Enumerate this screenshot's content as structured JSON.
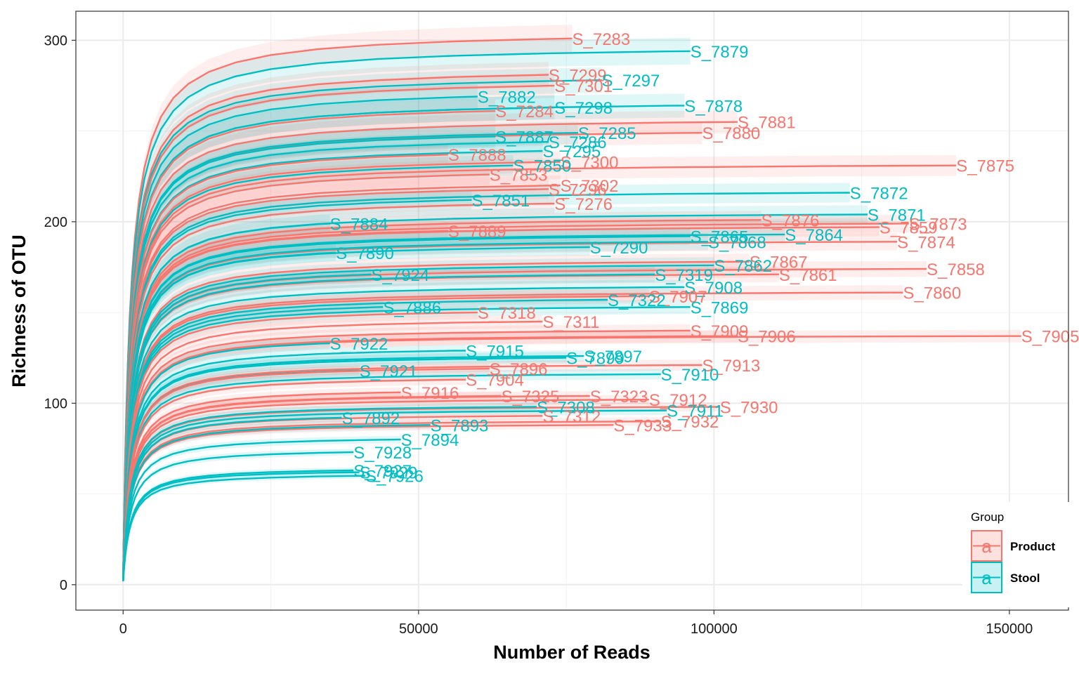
{
  "chart_data": {
    "type": "line",
    "title": "",
    "xlabel": "Number of Reads",
    "ylabel": "Richness of OTU",
    "xlim": [
      -8000,
      160000
    ],
    "ylim": [
      -14,
      316
    ],
    "x_ticks": [
      0,
      50000,
      100000,
      150000
    ],
    "x_tick_labels": [
      "0",
      "50000",
      "100000",
      "150000"
    ],
    "y_ticks": [
      0,
      100,
      200,
      300
    ],
    "y_tick_labels": [
      "0",
      "100",
      "200",
      "300"
    ],
    "grid": true,
    "legend": {
      "title": "Group",
      "placement": "bottom-right",
      "key_glyph": "a",
      "entries": [
        {
          "name": "Product",
          "color": "#F8766D"
        },
        {
          "name": "Stool",
          "color": "#00BFC4"
        }
      ]
    },
    "series": [
      {
        "label": "S_7283",
        "group": "Product",
        "max_reads": 76000,
        "richness": 301
      },
      {
        "label": "S_7879",
        "group": "Stool",
        "max_reads": 96000,
        "richness": 294
      },
      {
        "label": "S_7299",
        "group": "Product",
        "max_reads": 72000,
        "richness": 281
      },
      {
        "label": "S_7297",
        "group": "Stool",
        "max_reads": 81000,
        "richness": 278
      },
      {
        "label": "S_7301",
        "group": "Product",
        "max_reads": 73000,
        "richness": 275
      },
      {
        "label": "S_7882",
        "group": "Stool",
        "max_reads": 60000,
        "richness": 269
      },
      {
        "label": "S_7878",
        "group": "Stool",
        "max_reads": 95000,
        "richness": 264
      },
      {
        "label": "S_7298",
        "group": "Stool",
        "max_reads": 73000,
        "richness": 263
      },
      {
        "label": "S_7284",
        "group": "Product",
        "max_reads": 63000,
        "richness": 261
      },
      {
        "label": "S_7881",
        "group": "Product",
        "max_reads": 104000,
        "richness": 255
      },
      {
        "label": "S_7880",
        "group": "Product",
        "max_reads": 98000,
        "richness": 249
      },
      {
        "label": "S_7887",
        "group": "Stool",
        "max_reads": 63000,
        "richness": 247
      },
      {
        "label": "S_7285",
        "group": "Stool",
        "max_reads": 77000,
        "richness": 249
      },
      {
        "label": "S_7286",
        "group": "Stool",
        "max_reads": 72000,
        "richness": 244
      },
      {
        "label": "S_7295",
        "group": "Stool",
        "max_reads": 71000,
        "richness": 239
      },
      {
        "label": "S_7888",
        "group": "Product",
        "max_reads": 55000,
        "richness": 237
      },
      {
        "label": "S_7300",
        "group": "Product",
        "max_reads": 74000,
        "richness": 233
      },
      {
        "label": "S_7850",
        "group": "Stool",
        "max_reads": 66000,
        "richness": 231
      },
      {
        "label": "S_7875",
        "group": "Product",
        "max_reads": 141000,
        "richness": 231
      },
      {
        "label": "S_7853",
        "group": "Product",
        "max_reads": 62000,
        "richness": 226
      },
      {
        "label": "S_7302",
        "group": "Product",
        "max_reads": 74000,
        "richness": 220
      },
      {
        "label": "S_7296",
        "group": "Product",
        "max_reads": 72000,
        "richness": 218
      },
      {
        "label": "S_7872",
        "group": "Stool",
        "max_reads": 123000,
        "richness": 216
      },
      {
        "label": "S_7851",
        "group": "Stool",
        "max_reads": 59000,
        "richness": 212
      },
      {
        "label": "S_7276",
        "group": "Product",
        "max_reads": 73000,
        "richness": 210
      },
      {
        "label": "S_7871",
        "group": "Stool",
        "max_reads": 126000,
        "richness": 204
      },
      {
        "label": "S_7876",
        "group": "Product",
        "max_reads": 108000,
        "richness": 201
      },
      {
        "label": "S_7873",
        "group": "Product",
        "max_reads": 133000,
        "richness": 199
      },
      {
        "label": "S_7859",
        "group": "Product",
        "max_reads": 128000,
        "richness": 197
      },
      {
        "label": "S_7884",
        "group": "Stool",
        "max_reads": 35000,
        "richness": 199
      },
      {
        "label": "S_7889",
        "group": "Product",
        "max_reads": 55000,
        "richness": 195
      },
      {
        "label": "S_7864",
        "group": "Stool",
        "max_reads": 112000,
        "richness": 193
      },
      {
        "label": "S_7865",
        "group": "Stool",
        "max_reads": 96000,
        "richness": 192
      },
      {
        "label": "S_7874",
        "group": "Product",
        "max_reads": 131000,
        "richness": 189
      },
      {
        "label": "S_7868",
        "group": "Stool",
        "max_reads": 99000,
        "richness": 189
      },
      {
        "label": "S_7290",
        "group": "Stool",
        "max_reads": 79000,
        "richness": 186
      },
      {
        "label": "S_7890",
        "group": "Stool",
        "max_reads": 36000,
        "richness": 183
      },
      {
        "label": "S_7867",
        "group": "Product",
        "max_reads": 106000,
        "richness": 178
      },
      {
        "label": "S_7858",
        "group": "Product",
        "max_reads": 136000,
        "richness": 174
      },
      {
        "label": "S_7862",
        "group": "Stool",
        "max_reads": 100000,
        "richness": 176
      },
      {
        "label": "S_7861",
        "group": "Product",
        "max_reads": 111000,
        "richness": 171
      },
      {
        "label": "S_7319",
        "group": "Stool",
        "max_reads": 90000,
        "richness": 171
      },
      {
        "label": "S_7924",
        "group": "Stool",
        "max_reads": 42000,
        "richness": 171
      },
      {
        "label": "S_7860",
        "group": "Product",
        "max_reads": 132000,
        "richness": 161
      },
      {
        "label": "S_7908",
        "group": "Stool",
        "max_reads": 95000,
        "richness": 164
      },
      {
        "label": "S_7907",
        "group": "Product",
        "max_reads": 89000,
        "richness": 159
      },
      {
        "label": "S_7322",
        "group": "Stool",
        "max_reads": 82000,
        "richness": 157
      },
      {
        "label": "S_7869",
        "group": "Stool",
        "max_reads": 96000,
        "richness": 153
      },
      {
        "label": "S_7886",
        "group": "Stool",
        "max_reads": 44000,
        "richness": 153
      },
      {
        "label": "S_7318",
        "group": "Product",
        "max_reads": 60000,
        "richness": 150
      },
      {
        "label": "S_7311",
        "group": "Product",
        "max_reads": 71000,
        "richness": 145
      },
      {
        "label": "S_7909",
        "group": "Product",
        "max_reads": 96000,
        "richness": 140
      },
      {
        "label": "S_7906",
        "group": "Product",
        "max_reads": 104000,
        "richness": 137
      },
      {
        "label": "S_7905",
        "group": "Product",
        "max_reads": 152000,
        "richness": 137
      },
      {
        "label": "S_7922",
        "group": "Stool",
        "max_reads": 35000,
        "richness": 133
      },
      {
        "label": "S_7915",
        "group": "Stool",
        "max_reads": 58000,
        "richness": 129
      },
      {
        "label": "S_7897",
        "group": "Stool",
        "max_reads": 78000,
        "richness": 126
      },
      {
        "label": "S_7899",
        "group": "Stool",
        "max_reads": 75000,
        "richness": 125
      },
      {
        "label": "S_7913",
        "group": "Product",
        "max_reads": 98000,
        "richness": 121
      },
      {
        "label": "S_7910",
        "group": "Stool",
        "max_reads": 91000,
        "richness": 116
      },
      {
        "label": "S_7921",
        "group": "Stool",
        "max_reads": 40000,
        "richness": 118
      },
      {
        "label": "S_7896",
        "group": "Product",
        "max_reads": 62000,
        "richness": 119
      },
      {
        "label": "S_7904",
        "group": "Product",
        "max_reads": 58000,
        "richness": 113
      },
      {
        "label": "S_7916",
        "group": "Product",
        "max_reads": 47000,
        "richness": 106
      },
      {
        "label": "S_7325",
        "group": "Product",
        "max_reads": 64000,
        "richness": 104
      },
      {
        "label": "S_7323",
        "group": "Product",
        "max_reads": 79000,
        "richness": 104
      },
      {
        "label": "S_7912",
        "group": "Product",
        "max_reads": 89000,
        "richness": 102
      },
      {
        "label": "S_7930",
        "group": "Product",
        "max_reads": 101000,
        "richness": 98
      },
      {
        "label": "S_7911",
        "group": "Stool",
        "max_reads": 92000,
        "richness": 96
      },
      {
        "label": "S_7308",
        "group": "Stool",
        "max_reads": 70000,
        "richness": 98
      },
      {
        "label": "S_7312",
        "group": "Product",
        "max_reads": 71000,
        "richness": 93
      },
      {
        "label": "S_7932",
        "group": "Product",
        "max_reads": 91000,
        "richness": 90
      },
      {
        "label": "S_7933",
        "group": "Product",
        "max_reads": 83000,
        "richness": 88
      },
      {
        "label": "S_7892",
        "group": "Stool",
        "max_reads": 37000,
        "richness": 92
      },
      {
        "label": "S_7893",
        "group": "Stool",
        "max_reads": 52000,
        "richness": 88
      },
      {
        "label": "S_7894",
        "group": "Stool",
        "max_reads": 47000,
        "richness": 80
      },
      {
        "label": "S_7928",
        "group": "Stool",
        "max_reads": 39000,
        "richness": 73
      },
      {
        "label": "S_7927",
        "group": "Stool",
        "max_reads": 39000,
        "richness": 63
      },
      {
        "label": "S_7929",
        "group": "Stool",
        "max_reads": 40000,
        "richness": 62
      },
      {
        "label": "S_7926",
        "group": "Stool",
        "max_reads": 41000,
        "richness": 60
      }
    ]
  }
}
